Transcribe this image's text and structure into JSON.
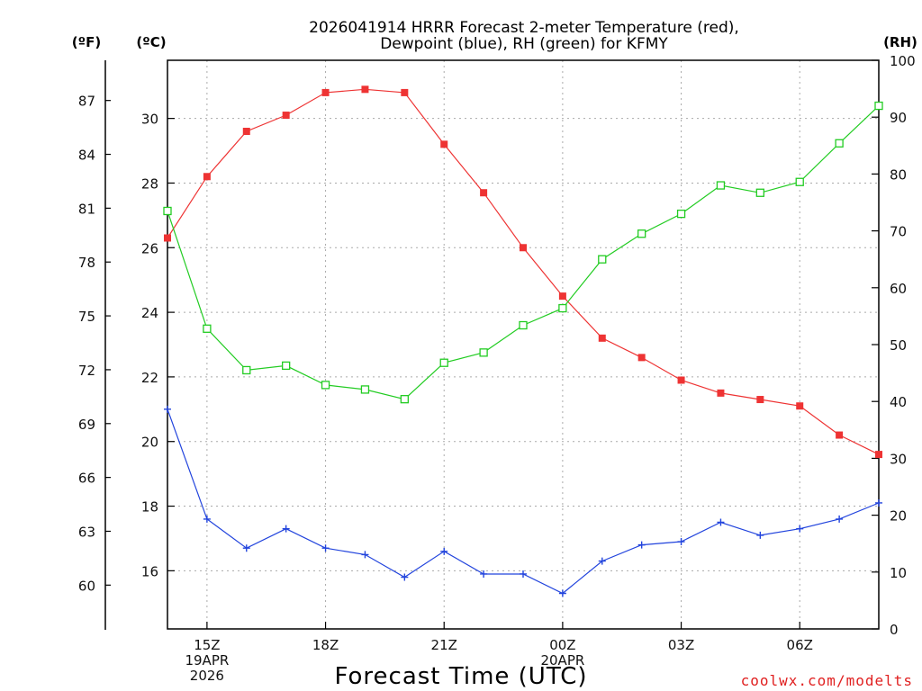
{
  "colors": {
    "temp": "#ee3333",
    "dewpoint": "#2244dd",
    "rh": "#22cc22",
    "credit": "#e02020"
  },
  "chart_data": {
    "type": "line",
    "title": [
      "2026041914 HRRR Forecast 2-meter Temperature (red),",
      "Dewpoint (blue), RH (green) for KFMY"
    ],
    "xlabel": "Forecast Time (UTC)",
    "credit": "coolwx.com/modelts",
    "units": {
      "f": "(ºF)",
      "c": "(ºC)",
      "rh": "(RH)"
    },
    "x_hours": [
      14,
      15,
      16,
      17,
      18,
      19,
      20,
      21,
      22,
      23,
      24,
      25,
      26,
      27,
      28,
      29,
      30,
      31,
      32
    ],
    "x_ticks": [
      {
        "hour": 15,
        "lines": [
          "15Z",
          "19APR",
          "2026"
        ]
      },
      {
        "hour": 18,
        "lines": [
          "18Z"
        ]
      },
      {
        "hour": 21,
        "lines": [
          "21Z"
        ]
      },
      {
        "hour": 24,
        "lines": [
          "00Z",
          "20APR"
        ]
      },
      {
        "hour": 27,
        "lines": [
          "03Z"
        ]
      },
      {
        "hour": 30,
        "lines": [
          "06Z"
        ]
      }
    ],
    "xlim": [
      14,
      32
    ],
    "ylim_c": [
      14.2,
      31.8
    ],
    "ylim_rh": [
      0,
      100
    ],
    "c_ticks": [
      16,
      18,
      20,
      22,
      24,
      26,
      28,
      30
    ],
    "f_ticks": [
      60,
      63,
      66,
      69,
      72,
      75,
      78,
      81,
      84,
      87
    ],
    "rh_ticks": [
      0,
      10,
      20,
      30,
      40,
      50,
      60,
      70,
      80,
      90,
      100
    ],
    "series": [
      {
        "name": "Temperature",
        "axis": "c",
        "marker": "filled-square",
        "values": [
          26.3,
          28.2,
          29.6,
          30.1,
          30.8,
          30.9,
          30.8,
          29.2,
          27.7,
          26.0,
          24.5,
          23.2,
          22.6,
          21.9,
          21.5,
          21.3,
          21.1,
          20.2,
          19.6
        ]
      },
      {
        "name": "Dewpoint",
        "axis": "c",
        "marker": "plus",
        "values": [
          21.0,
          17.6,
          16.7,
          17.3,
          16.7,
          16.5,
          15.8,
          16.6,
          15.9,
          15.9,
          15.3,
          16.3,
          16.8,
          16.9,
          17.5,
          17.1,
          17.3,
          17.6,
          18.1
        ]
      },
      {
        "name": "RH",
        "axis": "rh",
        "marker": "open-square",
        "values": [
          73.5,
          52.8,
          45.5,
          46.3,
          42.9,
          42.1,
          40.4,
          46.8,
          48.6,
          53.4,
          56.4,
          65.0,
          69.5,
          73.0,
          78.0,
          76.7,
          78.6,
          85.4,
          92.0
        ]
      }
    ]
  }
}
